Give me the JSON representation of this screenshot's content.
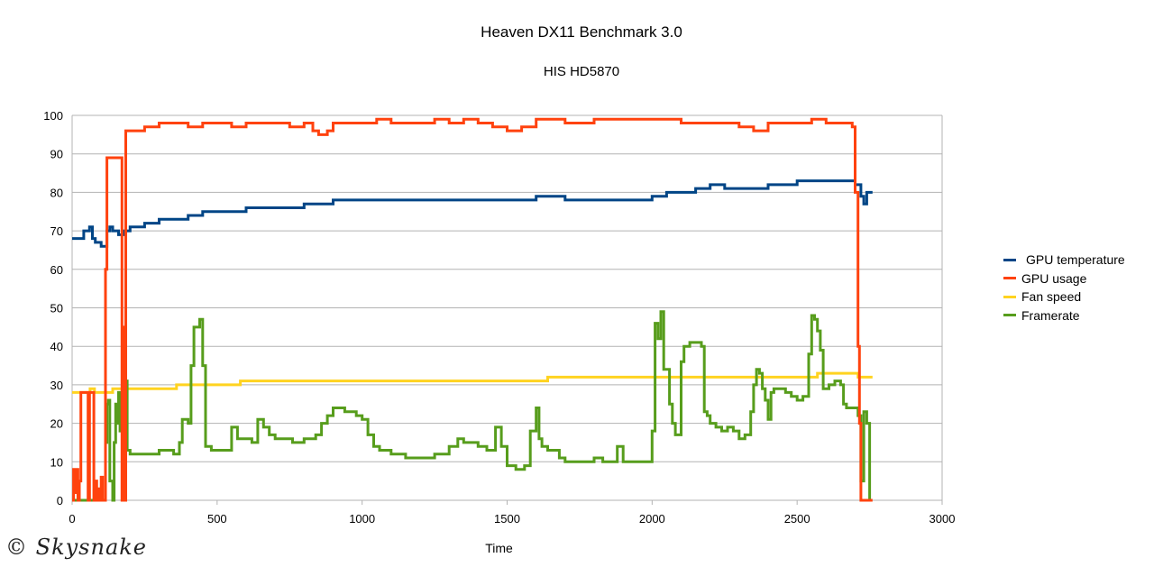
{
  "chart_data": {
    "type": "line",
    "title": "Heaven DX11 Benchmark 3.0",
    "subtitle": "HIS HD5870",
    "xlabel": "Time",
    "ylabel": "",
    "xlim": [
      0,
      3000
    ],
    "ylim": [
      0,
      100
    ],
    "x_ticks": [
      0,
      500,
      1000,
      1500,
      2000,
      2500,
      3000
    ],
    "y_ticks": [
      0,
      10,
      20,
      30,
      40,
      50,
      60,
      70,
      80,
      90,
      100
    ],
    "grid": "horizontal",
    "legend_position": "right",
    "series": [
      {
        "name": "GPU temperature",
        "color": "#004586",
        "points": [
          [
            0,
            68
          ],
          [
            30,
            68
          ],
          [
            40,
            70
          ],
          [
            50,
            70
          ],
          [
            60,
            71
          ],
          [
            70,
            68
          ],
          [
            80,
            67
          ],
          [
            100,
            66
          ],
          [
            110,
            66
          ],
          [
            120,
            70
          ],
          [
            130,
            71
          ],
          [
            140,
            70
          ],
          [
            160,
            69
          ],
          [
            180,
            70
          ],
          [
            200,
            71
          ],
          [
            250,
            72
          ],
          [
            300,
            73
          ],
          [
            350,
            73
          ],
          [
            400,
            74
          ],
          [
            450,
            75
          ],
          [
            500,
            75
          ],
          [
            550,
            75
          ],
          [
            600,
            76
          ],
          [
            700,
            76
          ],
          [
            800,
            77
          ],
          [
            850,
            77
          ],
          [
            900,
            78
          ],
          [
            1000,
            78
          ],
          [
            1100,
            78
          ],
          [
            1200,
            78
          ],
          [
            1300,
            78
          ],
          [
            1400,
            78
          ],
          [
            1500,
            78
          ],
          [
            1600,
            79
          ],
          [
            1700,
            78
          ],
          [
            1800,
            78
          ],
          [
            1900,
            78
          ],
          [
            2000,
            79
          ],
          [
            2050,
            80
          ],
          [
            2100,
            80
          ],
          [
            2150,
            81
          ],
          [
            2200,
            82
          ],
          [
            2250,
            81
          ],
          [
            2300,
            81
          ],
          [
            2350,
            81
          ],
          [
            2400,
            82
          ],
          [
            2450,
            82
          ],
          [
            2500,
            83
          ],
          [
            2600,
            83
          ],
          [
            2680,
            83
          ],
          [
            2700,
            82
          ],
          [
            2720,
            79
          ],
          [
            2730,
            77
          ],
          [
            2740,
            80
          ],
          [
            2760,
            80
          ]
        ]
      },
      {
        "name": "GPU usage",
        "color": "#ff420e",
        "points": [
          [
            0,
            0
          ],
          [
            5,
            8
          ],
          [
            10,
            2
          ],
          [
            15,
            8
          ],
          [
            20,
            0
          ],
          [
            25,
            5
          ],
          [
            30,
            28
          ],
          [
            50,
            28
          ],
          [
            55,
            0
          ],
          [
            60,
            28
          ],
          [
            70,
            28
          ],
          [
            75,
            0
          ],
          [
            80,
            5
          ],
          [
            85,
            0
          ],
          [
            90,
            3
          ],
          [
            95,
            0
          ],
          [
            100,
            6
          ],
          [
            105,
            0
          ],
          [
            110,
            0
          ],
          [
            115,
            60
          ],
          [
            120,
            89
          ],
          [
            170,
            89
          ],
          [
            172,
            0
          ],
          [
            175,
            45
          ],
          [
            180,
            0
          ],
          [
            185,
            96
          ],
          [
            200,
            96
          ],
          [
            250,
            97
          ],
          [
            300,
            98
          ],
          [
            350,
            98
          ],
          [
            400,
            97
          ],
          [
            450,
            98
          ],
          [
            500,
            98
          ],
          [
            550,
            97
          ],
          [
            600,
            98
          ],
          [
            700,
            98
          ],
          [
            750,
            97
          ],
          [
            800,
            98
          ],
          [
            830,
            96
          ],
          [
            850,
            95
          ],
          [
            880,
            96
          ],
          [
            900,
            98
          ],
          [
            1000,
            98
          ],
          [
            1050,
            99
          ],
          [
            1100,
            98
          ],
          [
            1200,
            98
          ],
          [
            1250,
            99
          ],
          [
            1300,
            98
          ],
          [
            1350,
            99
          ],
          [
            1400,
            98
          ],
          [
            1450,
            97
          ],
          [
            1500,
            96
          ],
          [
            1550,
            97
          ],
          [
            1600,
            99
          ],
          [
            1700,
            98
          ],
          [
            1800,
            99
          ],
          [
            1900,
            99
          ],
          [
            2000,
            99
          ],
          [
            2100,
            98
          ],
          [
            2200,
            98
          ],
          [
            2300,
            97
          ],
          [
            2350,
            96
          ],
          [
            2400,
            98
          ],
          [
            2500,
            98
          ],
          [
            2550,
            99
          ],
          [
            2600,
            98
          ],
          [
            2680,
            98
          ],
          [
            2690,
            97
          ],
          [
            2700,
            80
          ],
          [
            2710,
            40
          ],
          [
            2715,
            20
          ],
          [
            2720,
            0
          ],
          [
            2760,
            0
          ]
        ]
      },
      {
        "name": "Fan speed",
        "color": "#ffd320",
        "points": [
          [
            0,
            28
          ],
          [
            60,
            28
          ],
          [
            62,
            29
          ],
          [
            75,
            29
          ],
          [
            77,
            28
          ],
          [
            140,
            29
          ],
          [
            350,
            29
          ],
          [
            360,
            30
          ],
          [
            570,
            30
          ],
          [
            580,
            31
          ],
          [
            1630,
            31
          ],
          [
            1640,
            32
          ],
          [
            2560,
            32
          ],
          [
            2570,
            33
          ],
          [
            2700,
            33
          ],
          [
            2710,
            32
          ],
          [
            2760,
            32
          ]
        ]
      },
      {
        "name": "Framerate",
        "color": "#579d1c",
        "points": [
          [
            0,
            0
          ],
          [
            110,
            0
          ],
          [
            115,
            15
          ],
          [
            120,
            25
          ],
          [
            125,
            26
          ],
          [
            130,
            5
          ],
          [
            140,
            0
          ],
          [
            145,
            15
          ],
          [
            150,
            25
          ],
          [
            155,
            20
          ],
          [
            160,
            28
          ],
          [
            165,
            18
          ],
          [
            170,
            28
          ],
          [
            175,
            20
          ],
          [
            180,
            31
          ],
          [
            190,
            13
          ],
          [
            200,
            12
          ],
          [
            220,
            12
          ],
          [
            250,
            12
          ],
          [
            300,
            13
          ],
          [
            350,
            12
          ],
          [
            370,
            15
          ],
          [
            380,
            21
          ],
          [
            400,
            20
          ],
          [
            410,
            35
          ],
          [
            420,
            45
          ],
          [
            440,
            47
          ],
          [
            450,
            35
          ],
          [
            460,
            14
          ],
          [
            480,
            13
          ],
          [
            520,
            13
          ],
          [
            550,
            19
          ],
          [
            570,
            16
          ],
          [
            600,
            16
          ],
          [
            620,
            15
          ],
          [
            640,
            21
          ],
          [
            660,
            19
          ],
          [
            680,
            17
          ],
          [
            700,
            16
          ],
          [
            730,
            16
          ],
          [
            760,
            15
          ],
          [
            800,
            16
          ],
          [
            840,
            17
          ],
          [
            860,
            20
          ],
          [
            880,
            22
          ],
          [
            900,
            24
          ],
          [
            940,
            23
          ],
          [
            980,
            22
          ],
          [
            1000,
            21
          ],
          [
            1020,
            17
          ],
          [
            1040,
            14
          ],
          [
            1060,
            13
          ],
          [
            1100,
            12
          ],
          [
            1150,
            11
          ],
          [
            1200,
            11
          ],
          [
            1250,
            12
          ],
          [
            1300,
            14
          ],
          [
            1330,
            16
          ],
          [
            1350,
            15
          ],
          [
            1400,
            14
          ],
          [
            1430,
            13
          ],
          [
            1460,
            19
          ],
          [
            1480,
            14
          ],
          [
            1500,
            9
          ],
          [
            1530,
            8
          ],
          [
            1560,
            9
          ],
          [
            1580,
            18
          ],
          [
            1600,
            24
          ],
          [
            1610,
            16
          ],
          [
            1620,
            14
          ],
          [
            1640,
            13
          ],
          [
            1680,
            11
          ],
          [
            1700,
            10
          ],
          [
            1750,
            10
          ],
          [
            1800,
            11
          ],
          [
            1830,
            10
          ],
          [
            1860,
            10
          ],
          [
            1880,
            14
          ],
          [
            1900,
            10
          ],
          [
            1950,
            10
          ],
          [
            1980,
            10
          ],
          [
            2000,
            18
          ],
          [
            2010,
            46
          ],
          [
            2020,
            42
          ],
          [
            2030,
            49
          ],
          [
            2040,
            34
          ],
          [
            2060,
            25
          ],
          [
            2070,
            20
          ],
          [
            2080,
            17
          ],
          [
            2100,
            36
          ],
          [
            2110,
            40
          ],
          [
            2130,
            41
          ],
          [
            2150,
            41
          ],
          [
            2170,
            40
          ],
          [
            2180,
            23
          ],
          [
            2190,
            22
          ],
          [
            2200,
            20
          ],
          [
            2220,
            19
          ],
          [
            2240,
            18
          ],
          [
            2260,
            19
          ],
          [
            2280,
            18
          ],
          [
            2300,
            16
          ],
          [
            2320,
            17
          ],
          [
            2340,
            23
          ],
          [
            2350,
            30
          ],
          [
            2360,
            34
          ],
          [
            2370,
            33
          ],
          [
            2380,
            29
          ],
          [
            2390,
            26
          ],
          [
            2400,
            21
          ],
          [
            2410,
            28
          ],
          [
            2420,
            29
          ],
          [
            2440,
            29
          ],
          [
            2460,
            28
          ],
          [
            2480,
            27
          ],
          [
            2500,
            26
          ],
          [
            2520,
            27
          ],
          [
            2540,
            38
          ],
          [
            2550,
            48
          ],
          [
            2560,
            47
          ],
          [
            2570,
            44
          ],
          [
            2580,
            39
          ],
          [
            2590,
            29
          ],
          [
            2610,
            30
          ],
          [
            2630,
            31
          ],
          [
            2650,
            30
          ],
          [
            2660,
            25
          ],
          [
            2670,
            24
          ],
          [
            2700,
            24
          ],
          [
            2710,
            22
          ],
          [
            2720,
            5
          ],
          [
            2730,
            23
          ],
          [
            2740,
            20
          ],
          [
            2750,
            0
          ]
        ]
      }
    ]
  },
  "watermark": "© Skysnake"
}
